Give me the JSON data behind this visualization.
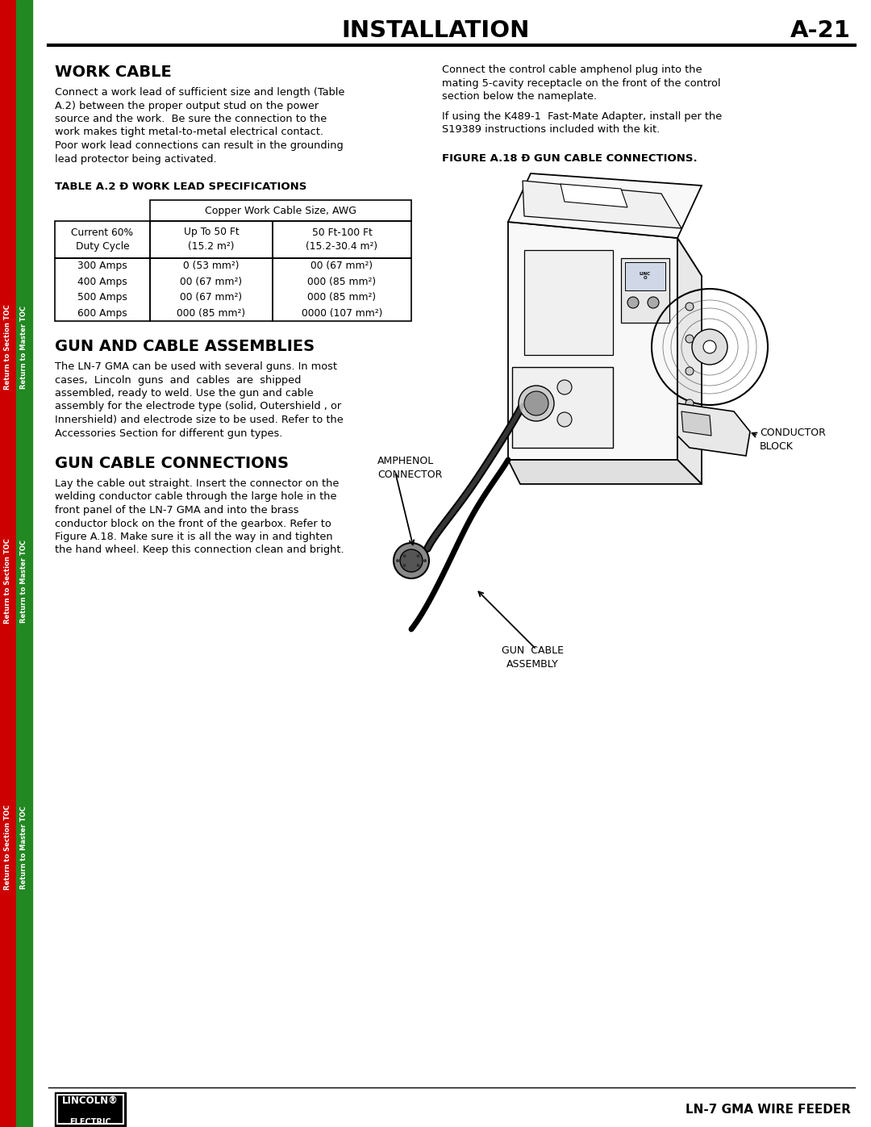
{
  "page_title": "INSTALLATION",
  "page_number": "A-21",
  "background_color": "#ffffff",
  "left_sidebar_red": "#cc0000",
  "left_sidebar_green": "#228822",
  "header_line_color": "#000000",
  "footer_text": "LN-7 GMA WIRE FEEDER",
  "section1_title": "WORK CABLE",
  "section1_body1": "Connect a work lead of sufficient size and length (Table",
  "section1_body2": "A.2) between the proper output stud on the power",
  "section1_body3": "source and the work.  Be sure the connection to the",
  "section1_body4": "work makes tight metal-to-metal electrical contact.",
  "section1_body5": "Poor work lead connections can result in the grounding",
  "section1_body6": "lead protector being activated.",
  "table_title": "TABLE A.2 Ð WORK LEAD SPECIFICATIONS",
  "table_header": "Copper Work Cable Size, AWG",
  "table_col1_header": "Current 60%\nDuty Cycle",
  "table_col2_header": "Up To 50 Ft\n(15.2 m²)",
  "table_col3_header": "50 Ft-100 Ft\n(15.2-30.4 m²)",
  "table_rows": [
    [
      "300 Amps",
      "0 (53 mm²)",
      "00 (67 mm²)"
    ],
    [
      "400 Amps",
      "00 (67 mm²)",
      "000 (85 mm²)"
    ],
    [
      "500 Amps",
      "00 (67 mm²)",
      "000 (85 mm²)"
    ],
    [
      "600 Amps",
      "000 (85 mm²)",
      "0000 (107 mm²)"
    ]
  ],
  "section2_title": "GUN AND CABLE ASSEMBLIES",
  "section2_body1": "The LN-7 GMA can be used with several guns. In most",
  "section2_body2": "cases,  Lincoln  guns  and  cables  are  shipped",
  "section2_body3": "assembled, ready to weld. Use the gun and cable",
  "section2_body4": "assembly for the electrode type (solid, Outershield , or",
  "section2_body5": "Innershield) and electrode size to be used. Refer to the",
  "section2_body6": "Accessories Section for different gun types.",
  "section3_title": "GUN CABLE CONNECTIONS",
  "section3_body1": "Lay the cable out straight. Insert the connector on the",
  "section3_body2": "welding conductor cable through the large hole in the",
  "section3_body3": "front panel of the LN-7 GMA and into the brass",
  "section3_body4": "conductor block on the front of the gearbox. Refer to",
  "section3_body5": "Figure A.18. Make sure it is all the way in and tighten",
  "section3_body6": "the hand wheel. Keep this connection clean and bright.",
  "right_col_text1a": "Connect the control cable amphenol plug into the",
  "right_col_text1b": "mating 5-cavity receptacle on the front of the control",
  "right_col_text1c": "section below the nameplate.",
  "right_col_text2a": "If using the K489-1  Fast-Mate Adapter, install per the",
  "right_col_text2b": "S19389 instructions included with the kit.",
  "figure_title": "FIGURE A.18 Ð GUN CABLE CONNECTIONS.",
  "label_amphenol": "AMPHENOL\nCONNECTOR",
  "label_conductor": "CONDUCTOR\nBLOCK",
  "label_gun_cable": "GUN  CABLE\nASSEMBLY"
}
